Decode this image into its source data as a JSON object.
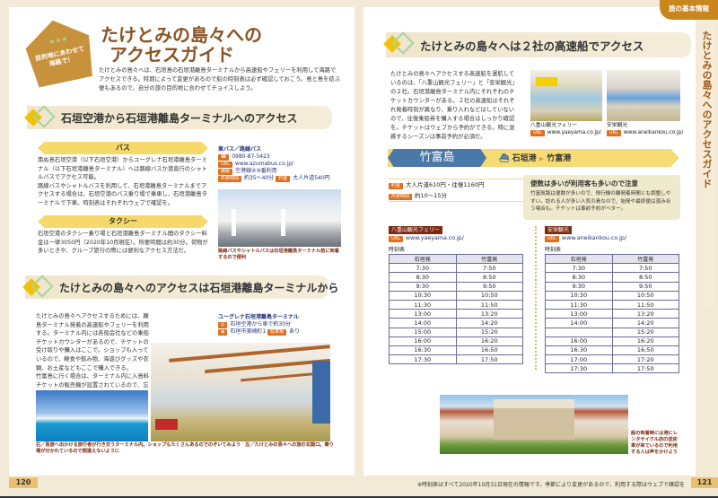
{
  "left_page": {
    "tag_text": "目的地にあわせて海路で！",
    "title": "たけとみの島々への\nアクセスガイド",
    "title_line1": "たけとみの島々への",
    "title_line2": "アクセスガイド",
    "intro": "たけとみの島々へは、石垣島の石垣港離島ターミナルから高速船やフェリーを利用して海路でアクセスできる。時期によって変更があるので船の時刻表は必ず確認しておこう。島と島を結ぶ便もあるので、自分の旅の目的地に合わせてチョイスしよう。",
    "section1": {
      "heading": "石垣空港から石垣港離島ターミナルへのアクセス",
      "bus_label": "バス",
      "bus_text1": "南ぬ島石垣空港（以下石垣空港）からユーグレナ石垣港離島ターミナル（以下石垣港離島ターミナル）へは路線バスか港直行のシャトルバスでアクセス可能。",
      "bus_text2": "路線バスやシャトルバスを利用して、石垣港離島ターミナルまでアクセスする場合は、石垣空港のバス乗り場で乗車し、石垣港離島ターミナルで下車。時刻表はそれぞれウェブで確認を。",
      "taxi_label": "タクシー",
      "taxi_text": "石垣空港のタクシー乗り場と石垣港離島ターミナル間のタクシー料金は一律3050円（2020年10月現在）。所要時間は約30分。荷物が多いときや、グループ旅行の際には便利なアクセス方法だ。",
      "bus_info": {
        "name": "東バス／路線バス",
        "phone": "0980-87-5423",
        "url": "www.azumabus.co.jp/",
        "route_tag": "路線",
        "route": "空港線④⑩番利用",
        "time_tag": "所要時間",
        "time": "約35〜40分",
        "fare_tag": "料金",
        "fare": "大人片道540円",
        "url_tag": "URL"
      },
      "photo_caption": "路線バスやシャトルバスは石垣港離島ターミナル前に到着するので便利"
    },
    "section2": {
      "heading": "たけとみの島々へのアクセスは石垣港離島ターミナルから",
      "text1": "たけとみの島々へアクセスするためには、離島ターミナル発着の高速船やフェリーを利用する。ターミナル内には各船会社などの乗船チケットカウンターがあるので、チケットの受け取りや購入はここで。ショップも入っているので、軽食や飲み物、海遊びグッズや衣類、お土産などもここで購入できる。",
      "text2": "竹富島に行く場合は、ターミナル内に入島料チケットの販売機が設置されているので、忘れずに購入しておこう。",
      "terminal_name": "ユーグレナ石垣港離島ターミナル",
      "terminal_access": "石垣空港から車で約30分",
      "terminal_address": "石垣市美崎町1",
      "parking_tag": "駐車場",
      "parking": "あり",
      "caption": "右／島旅へ出かける旅行者が行き交うターミナル内。ショップもたくさんあるのでのぞいてみよう　左／たけとみの島々への旅の玄関口。乗り場が分かれているので間違えないように"
    },
    "page_number": "120"
  },
  "right_page": {
    "corner_label": "旅の基本情報",
    "side_title": "たけとみの島々へのアクセスガイド",
    "section_heading": "たけとみの島々へは２社の高速船でアクセス",
    "intro": "たけとみの島々へアクセスする高速船を運航しているのは、「八重山観光フェリー」と「安栄観光」の２社。石垣港離島ターミナル内にそれぞれのチケットカウンターがある。２社の高速船はそれぞれ発着時刻が異なり、乗り入れなどはしていないので、往復乗船券を購入する場合はしっかり確認を。チケットはウェブから予約ができる。特に混雑するシーズンは事前予約が必須だ。",
    "photo1": {
      "name": "八重山観光フェリー",
      "url": "www.yaeyama.co.jp/"
    },
    "photo2": {
      "name": "安栄観光",
      "url": "www.aneikankou.co.jp/"
    },
    "url_tag": "URL",
    "island": {
      "name": "竹富島",
      "route_from": "石垣港",
      "route_to": "竹富港",
      "fare_tag": "料金",
      "fare": "大人片道610円・往復1160円",
      "time_tag": "所要時間",
      "time": "約10〜15分",
      "note_title": "便数は多いが利用客も多いので注意",
      "note_text": "竹富航路は便数が多いので、飛行機の離発着時間とも調整しやすい。訪れる人が多い人気の島なので、始発や最終便は混み合う場合も。チケットは事前予約がベター。"
    },
    "timetables": [
      {
        "company": "八重山観光フェリー",
        "url": "www.yaeyama.co.jp/",
        "label": "時刻表",
        "headers": [
          "石垣発",
          "竹富発"
        ],
        "rows": [
          [
            "7:30",
            "7:50"
          ],
          [
            "8:30",
            "8:50"
          ],
          [
            "9:30",
            "9:50"
          ],
          [
            "10:30",
            "10:50"
          ],
          [
            "11:30",
            "11:50"
          ],
          [
            "13:00",
            "13:20"
          ],
          [
            "14:00",
            "14:20"
          ],
          [
            "15:00",
            "15:20"
          ],
          [
            "16:00",
            "16:20"
          ],
          [
            "16:30",
            "16:50"
          ],
          [
            "17:30",
            "17:50"
          ]
        ]
      },
      {
        "company": "安栄観光",
        "url": "www.aneikankou.co.jp/",
        "label": "時刻表",
        "headers": [
          "石垣発",
          "竹富発"
        ],
        "rows": [
          [
            "7:30",
            "7:50"
          ],
          [
            "8:30",
            "8:50"
          ],
          [
            "9:30",
            "9:50"
          ],
          [
            "10:30",
            "10:50"
          ],
          [
            "11:30",
            "11:50"
          ],
          [
            "13:00",
            "13:20"
          ],
          [
            "14:00",
            "14:20"
          ],
          [
            "",
            "15:20"
          ],
          [
            "16:00",
            "16:20"
          ],
          [
            "16:30",
            "16:50"
          ],
          [
            "17:00",
            "17:20"
          ],
          [
            "17:30",
            "17:50"
          ]
        ]
      }
    ],
    "photo_caption": "船の到着時には港にレンタサイクル店の送迎車が来ているので利用する人は声をかけよう",
    "footer_note": "※時刻表はすべて2020年10月31日現在の情報です。季節により変更があるので、利用する際はウェブで確認を",
    "page_number": "121"
  },
  "colors": {
    "brown": "#8a5526",
    "cream": "#f2ead6",
    "yellow": "#f6d96a",
    "orange": "#e07020",
    "blue": "#4a78a8",
    "tag_brown": "#c8923c"
  }
}
